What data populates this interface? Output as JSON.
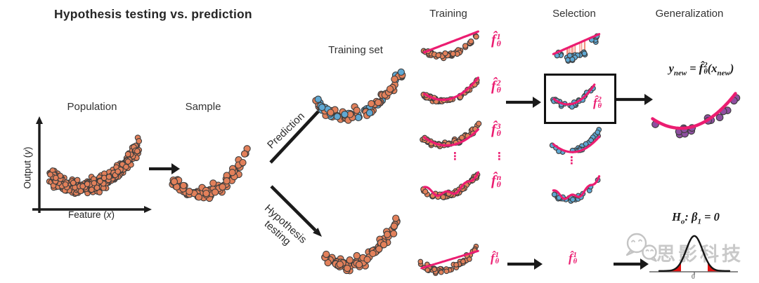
{
  "title": "Hypothesis testing vs. prediction",
  "colors": {
    "orange_dot": "#E2805A",
    "blue_dot": "#5FA8D3",
    "purple_dot": "#8E4FA0",
    "pink_fit": "#EB1D71",
    "residual_red": "#F2917F",
    "arrow_black": "#1a1a1a",
    "dot_outline": "#3d3d3d",
    "tail_red": "#E31212",
    "watermark_gray": "#c9c9c9"
  },
  "population": {
    "label": "Population",
    "y_axis_pre": "Output (",
    "y_axis_var": "y",
    "y_axis_post": ")",
    "x_axis_pre": "Feature (",
    "x_axis_var": "x",
    "x_axis_post": ")"
  },
  "sample": {
    "label": "Sample"
  },
  "branches": {
    "prediction": "Prediction",
    "hypothesis_line1": "Hypothesis",
    "hypothesis_line2": "testing"
  },
  "training_set": {
    "label": "Training set"
  },
  "columns": {
    "training": "Training",
    "selection": "Selection",
    "generalization": "Generalization"
  },
  "ellipsis": "⋮",
  "models": [
    {
      "f": "f̂",
      "sup": "1",
      "sub": "θ"
    },
    {
      "f": "f̂",
      "sup": "2",
      "sub": "θ"
    },
    {
      "f": "f̂",
      "sup": "3",
      "sub": "θ"
    },
    {
      "f": "f̂",
      "sup": "n",
      "sub": "θ"
    }
  ],
  "selected_model": {
    "f": "f̂",
    "sup": "2",
    "sub": "θ"
  },
  "bottom_model_left": {
    "f": "f̂",
    "sup": "1",
    "sub": "θ"
  },
  "bottom_model_right": {
    "f": "f̂",
    "sup": "1",
    "sub": "θ"
  },
  "generalization_eq": {
    "lhs": "y",
    "lhs_sub": "new",
    "rel": "=",
    "f": "f̂",
    "f_sup": "2",
    "f_sub": "θ",
    "lp": "(",
    "arg": "x",
    "arg_sub": "new",
    "rp": ")"
  },
  "hypothesis_eq": {
    "H": "H",
    "H_sub": "o",
    "colon": ":",
    "beta": "β",
    "beta_sub": "1",
    "rhs": "= 0"
  },
  "distribution": {
    "tick_label": "0"
  },
  "watermark": {
    "text": "思影科技",
    "logo": "wechat-chat-bubbles-icon"
  }
}
